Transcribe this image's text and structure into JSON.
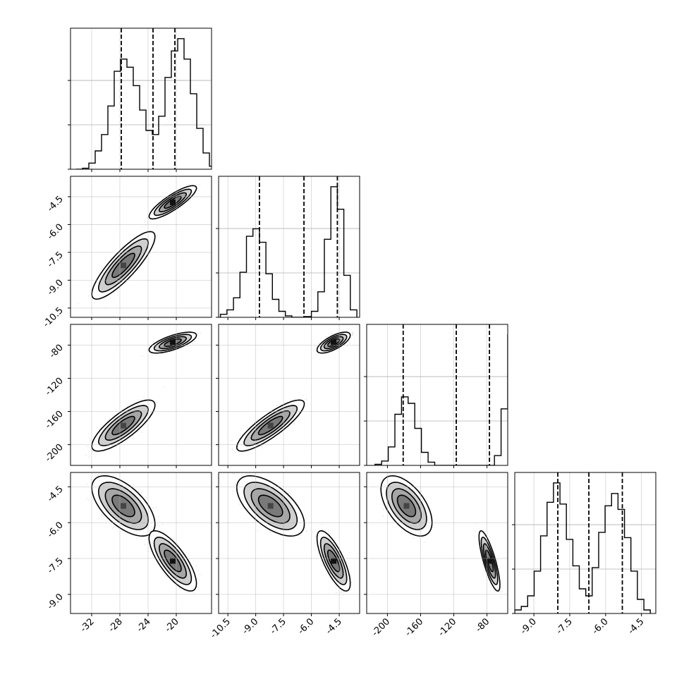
{
  "chart_data": {
    "type": "corner",
    "parameters": [
      {
        "range": [
          -35,
          -15
        ],
        "ticks": [
          "-32",
          "-28",
          "-24",
          "-20"
        ],
        "tick_values": [
          -32,
          -28,
          -24,
          -20
        ],
        "quantile_lines": [
          -27.8,
          -23.3,
          -20.2
        ],
        "histogram": {
          "bin_start": -34.2,
          "bin_width": 0.9,
          "counts": [
            0,
            0.5,
            3,
            9,
            17,
            31,
            48,
            54,
            50,
            41,
            29,
            19,
            17,
            26,
            45,
            58,
            64,
            54,
            37,
            20,
            8,
            1.5
          ]
        }
      },
      {
        "range": [
          -11,
          -3.4
        ],
        "ticks": [
          "-10.5",
          "-9.0",
          "-7.5",
          "-6.0",
          "-4.5"
        ],
        "tick_values": [
          -10.5,
          -9.0,
          -7.5,
          -6.0,
          -4.5
        ],
        "quantile_lines": [
          -8.8,
          -6.4,
          -4.6
        ],
        "histogram": {
          "bin_start": -10.9,
          "bin_width": 0.35,
          "counts": [
            2,
            5,
            13,
            30,
            54,
            59,
            50,
            29,
            12,
            4,
            1,
            0,
            0,
            0.5,
            4,
            17,
            52,
            87,
            72,
            28,
            5
          ]
        }
      },
      {
        "range": [
          -225,
          -55
        ],
        "ticks": [
          "-200",
          "-160",
          "-120",
          "-80"
        ],
        "tick_values": [
          -200,
          -160,
          -120,
          -80
        ],
        "quantile_lines": [
          -181,
          -117,
          -77
        ],
        "histogram": {
          "bin_start": -215,
          "bin_width": 8,
          "counts": [
            1,
            4,
            17,
            47,
            63,
            57,
            34,
            12,
            3,
            0,
            0,
            0,
            0,
            0,
            0,
            0,
            0,
            0,
            9,
            52,
            120,
            33,
            6
          ]
        }
      },
      {
        "range": [
          -9.8,
          -3.9
        ],
        "ticks": [
          "-9.0",
          "-7.5",
          "-6.0",
          "-4.5"
        ],
        "tick_values": [
          -9.0,
          -7.5,
          -6.0,
          -4.5
        ],
        "quantile_lines": [
          -8.0,
          -6.7,
          -5.3
        ],
        "histogram": {
          "bin_start": -9.8,
          "bin_width": 0.27,
          "counts": [
            2,
            4,
            10,
            24,
            44,
            63,
            74,
            62,
            42,
            27,
            14,
            10,
            26,
            46,
            61,
            68,
            59,
            43,
            24,
            8,
            2
          ]
        }
      }
    ],
    "clusters": [
      {
        "weight": 0.5,
        "mean": [
          -27.5,
          -8.2,
          -177,
          -5.3
        ],
        "sd": [
          1.6,
          0.65,
          11,
          0.45
        ],
        "corr": [
          [
            1,
            0.85,
            0.8,
            -0.6
          ],
          [
            0.85,
            1,
            0.85,
            -0.6
          ],
          [
            0.8,
            0.85,
            1,
            -0.55
          ],
          [
            -0.6,
            -0.6,
            -0.55,
            1
          ]
        ]
      },
      {
        "weight": 0.5,
        "mean": [
          -20.5,
          -4.8,
          -77,
          -7.6
        ],
        "sd": [
          1.2,
          0.32,
          4.5,
          0.45
        ],
        "corr": [
          [
            1,
            0.85,
            0.7,
            -0.75
          ],
          [
            0.85,
            1,
            0.7,
            -0.75
          ],
          [
            0.7,
            0.7,
            1,
            -0.8
          ],
          [
            -0.75,
            -0.75,
            -0.8,
            1
          ]
        ]
      }
    ],
    "grid": true
  }
}
